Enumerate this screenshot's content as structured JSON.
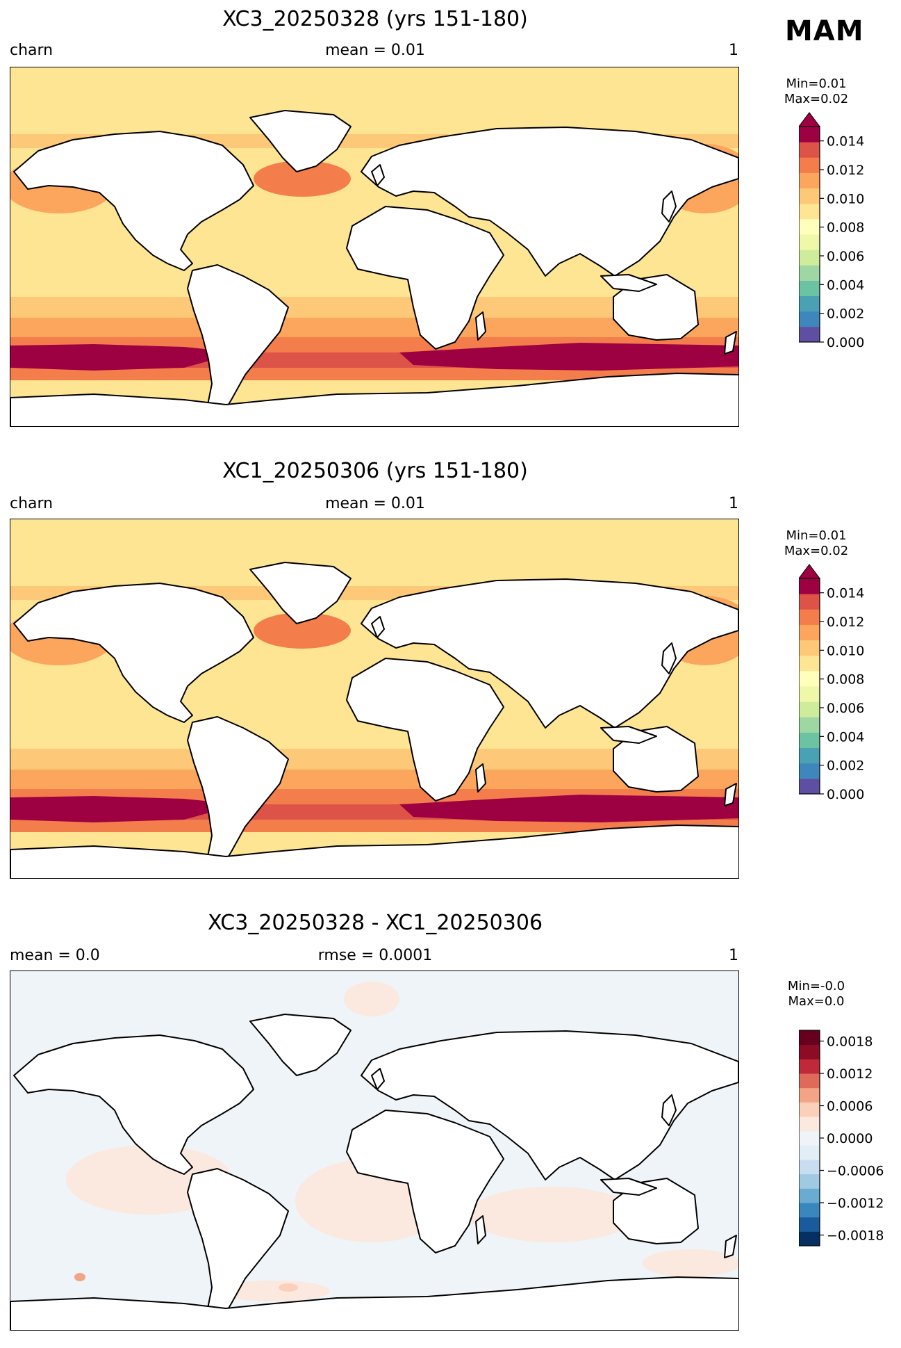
{
  "season": "MAM",
  "panels": [
    {
      "title": "XC3_20250328 (yrs 151-180)",
      "left": "charn",
      "center": "mean = 0.01",
      "right": "1",
      "minmax": [
        "Min=0.01",
        "Max=0.02"
      ],
      "colorbar": {
        "type": "sequential",
        "ticks": [
          "0.014",
          "0.012",
          "0.010",
          "0.008",
          "0.006",
          "0.004",
          "0.002",
          "0.000"
        ],
        "extend": "max"
      }
    },
    {
      "title": "XC1_20250306 (yrs 151-180)",
      "left": "charn",
      "center": "mean = 0.01",
      "right": "1",
      "minmax": [
        "Min=0.01",
        "Max=0.02"
      ],
      "colorbar": {
        "type": "sequential",
        "ticks": [
          "0.014",
          "0.012",
          "0.010",
          "0.008",
          "0.006",
          "0.004",
          "0.002",
          "0.000"
        ],
        "extend": "max"
      }
    },
    {
      "title": "XC3_20250328 - XC1_20250306",
      "left": "mean = 0.0",
      "center": "rmse = 0.0001",
      "right": "1",
      "minmax": [
        "Min=-0.0",
        "Max=0.0"
      ],
      "colorbar": {
        "type": "diverging",
        "ticks": [
          "0.0018",
          "0.0012",
          "0.0006",
          "0.0000",
          "−0.0006",
          "−0.0012",
          "−0.0018"
        ],
        "extend": "none"
      }
    }
  ],
  "colors": {
    "seq": [
      "#5e4fa2",
      "#3e86bc",
      "#49a1b3",
      "#6bc3a3",
      "#9fd7a4",
      "#cfec9d",
      "#eef8a8",
      "#fefebd",
      "#fee593",
      "#fdc877",
      "#fca55d",
      "#f47e4b",
      "#dd5347",
      "#9e0142"
    ],
    "div": [
      "#053061",
      "#1b5a9c",
      "#3a87bd",
      "#6aabd1",
      "#9fcae1",
      "#c8def0",
      "#e2eef5",
      "#eef4f7",
      "#fbe8df",
      "#fbd0bb",
      "#f3a486",
      "#de6a5a",
      "#c0293a",
      "#8c0b25",
      "#67001f"
    ],
    "land": "#ffffff",
    "coast": "#000000"
  }
}
